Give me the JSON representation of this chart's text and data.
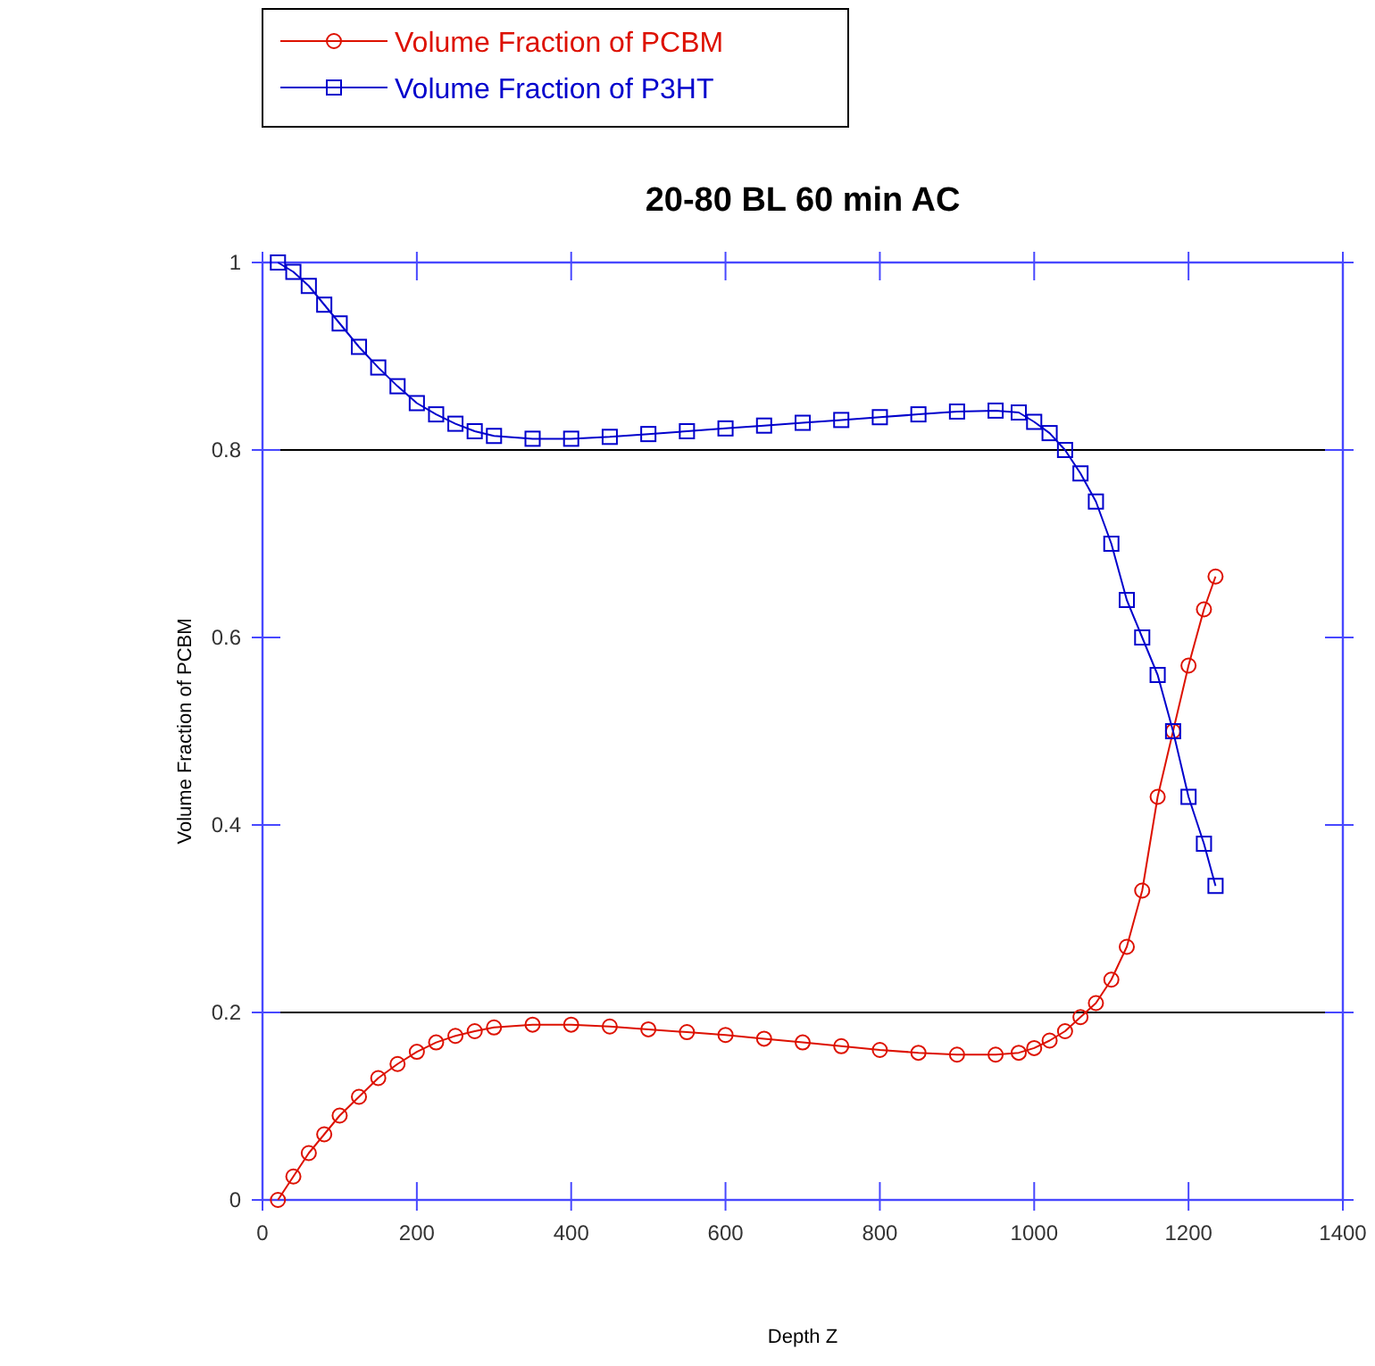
{
  "chart_data": {
    "type": "line",
    "title": "20-80 BL 60 min AC",
    "xlabel": "Depth Z",
    "ylabel": "Volume Fraction of PCBM",
    "x": [
      20,
      40,
      60,
      80,
      100,
      125,
      150,
      175,
      200,
      225,
      250,
      275,
      300,
      350,
      400,
      450,
      500,
      550,
      600,
      650,
      700,
      750,
      800,
      850,
      900,
      950,
      980,
      1000,
      1020,
      1040,
      1060,
      1080,
      1100,
      1120,
      1140,
      1160,
      1180,
      1200,
      1220,
      1235
    ],
    "series": [
      {
        "name": "Volume Fraction of PCBM",
        "color": "#dd1100",
        "marker": "circle",
        "values": [
          0,
          0.025,
          0.05,
          0.07,
          0.09,
          0.11,
          0.13,
          0.145,
          0.158,
          0.168,
          0.175,
          0.18,
          0.184,
          0.187,
          0.187,
          0.185,
          0.182,
          0.179,
          0.176,
          0.172,
          0.168,
          0.164,
          0.16,
          0.157,
          0.155,
          0.155,
          0.157,
          0.162,
          0.17,
          0.18,
          0.195,
          0.21,
          0.235,
          0.27,
          0.33,
          0.43,
          0.5,
          0.57,
          0.63,
          0.665
        ]
      },
      {
        "name": "Volume Fraction of P3HT",
        "color": "#0000cc",
        "marker": "square",
        "values": [
          1,
          0.99,
          0.975,
          0.955,
          0.935,
          0.91,
          0.888,
          0.868,
          0.85,
          0.838,
          0.828,
          0.82,
          0.815,
          0.812,
          0.812,
          0.814,
          0.817,
          0.82,
          0.823,
          0.826,
          0.829,
          0.832,
          0.835,
          0.838,
          0.841,
          0.842,
          0.84,
          0.83,
          0.818,
          0.8,
          0.775,
          0.745,
          0.7,
          0.64,
          0.6,
          0.56,
          0.5,
          0.43,
          0.38,
          0.335
        ]
      }
    ],
    "xlim": [
      0,
      1400
    ],
    "xticks": [
      0,
      200,
      400,
      600,
      800,
      1000,
      1200,
      1400
    ],
    "ylim": [
      0,
      1
    ],
    "yticks": [
      0,
      0.2,
      0.4,
      0.6,
      0.8,
      1
    ],
    "ref_lines": [
      {
        "axis": "y",
        "value": 0.2,
        "color": "#000000"
      },
      {
        "axis": "y",
        "value": 0.8,
        "color": "#000000"
      }
    ],
    "grid": false,
    "legend": "top left",
    "line_style": "solid"
  }
}
